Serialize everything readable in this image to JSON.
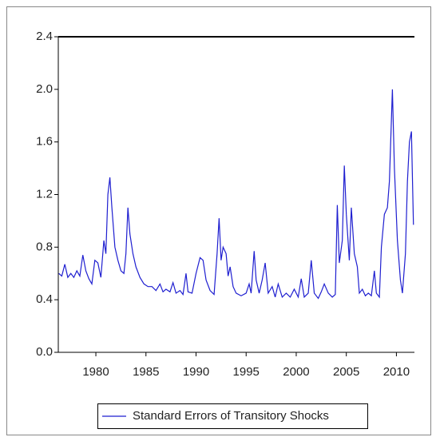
{
  "chart_data": {
    "type": "line",
    "x": [
      1976.3,
      1976.6,
      1976.9,
      1977.2,
      1977.5,
      1977.8,
      1978.1,
      1978.4,
      1978.7,
      1979.0,
      1979.3,
      1979.6,
      1979.9,
      1980.2,
      1980.5,
      1980.8,
      1981.0,
      1981.2,
      1981.4,
      1981.6,
      1981.9,
      1982.2,
      1982.5,
      1982.8,
      1983.0,
      1983.2,
      1983.4,
      1983.7,
      1984.0,
      1984.4,
      1984.8,
      1985.2,
      1985.6,
      1986.0,
      1986.4,
      1986.7,
      1987.0,
      1987.4,
      1987.7,
      1988.0,
      1988.4,
      1988.7,
      1989.0,
      1989.2,
      1989.6,
      1990.0,
      1990.4,
      1990.7,
      1991.0,
      1991.4,
      1991.8,
      1992.1,
      1992.3,
      1992.5,
      1992.7,
      1993.0,
      1993.2,
      1993.4,
      1993.7,
      1994.0,
      1994.5,
      1995.0,
      1995.3,
      1995.5,
      1995.8,
      1996.0,
      1996.3,
      1996.6,
      1996.9,
      1997.2,
      1997.6,
      1997.9,
      1998.2,
      1998.6,
      1999.0,
      1999.4,
      1999.8,
      2000.2,
      2000.5,
      2000.8,
      2001.2,
      2001.5,
      2001.8,
      2002.2,
      2002.5,
      2002.8,
      2003.2,
      2003.6,
      2003.9,
      2004.1,
      2004.3,
      2004.6,
      2004.8,
      2005.0,
      2005.3,
      2005.5,
      2005.8,
      2006.1,
      2006.3,
      2006.6,
      2006.9,
      2007.2,
      2007.5,
      2007.8,
      2008.0,
      2008.3,
      2008.5,
      2008.8,
      2009.1,
      2009.3,
      2009.6,
      2009.8,
      2010.1,
      2010.4,
      2010.6,
      2010.9,
      2011.1,
      2011.3,
      2011.5,
      2011.7
    ],
    "series": [
      {
        "name": "Standard Errors of Transitory Shocks",
        "color": "#1f1fd0",
        "values": [
          0.6,
          0.58,
          0.67,
          0.57,
          0.6,
          0.57,
          0.62,
          0.58,
          0.74,
          0.62,
          0.56,
          0.52,
          0.7,
          0.68,
          0.57,
          0.85,
          0.75,
          1.2,
          1.33,
          1.1,
          0.8,
          0.7,
          0.62,
          0.6,
          0.75,
          1.1,
          0.9,
          0.75,
          0.65,
          0.57,
          0.52,
          0.5,
          0.5,
          0.47,
          0.52,
          0.46,
          0.48,
          0.46,
          0.53,
          0.45,
          0.47,
          0.44,
          0.6,
          0.46,
          0.45,
          0.6,
          0.72,
          0.7,
          0.55,
          0.47,
          0.44,
          0.75,
          1.02,
          0.7,
          0.8,
          0.75,
          0.58,
          0.65,
          0.5,
          0.45,
          0.43,
          0.45,
          0.52,
          0.45,
          0.77,
          0.55,
          0.45,
          0.55,
          0.68,
          0.45,
          0.5,
          0.42,
          0.52,
          0.42,
          0.45,
          0.42,
          0.48,
          0.42,
          0.56,
          0.42,
          0.45,
          0.7,
          0.45,
          0.41,
          0.46,
          0.52,
          0.45,
          0.42,
          0.44,
          1.12,
          0.68,
          0.85,
          1.42,
          1.05,
          0.7,
          1.1,
          0.75,
          0.65,
          0.45,
          0.48,
          0.43,
          0.45,
          0.43,
          0.62,
          0.45,
          0.42,
          0.8,
          1.05,
          1.1,
          1.3,
          2.0,
          1.4,
          0.85,
          0.55,
          0.45,
          0.75,
          1.3,
          1.6,
          1.68,
          0.97
        ]
      }
    ],
    "xlim": [
      1976.25,
      2011.8
    ],
    "xticks": [
      1980,
      1985,
      1990,
      1995,
      2000,
      2005,
      2010
    ],
    "ylim": [
      0,
      2.4
    ],
    "yticks": [
      {
        "value": 0,
        "label": "0.0"
      },
      0.4,
      0.8,
      1.2,
      1.6,
      {
        "value": 2,
        "label": "2.0"
      },
      2.4
    ]
  }
}
